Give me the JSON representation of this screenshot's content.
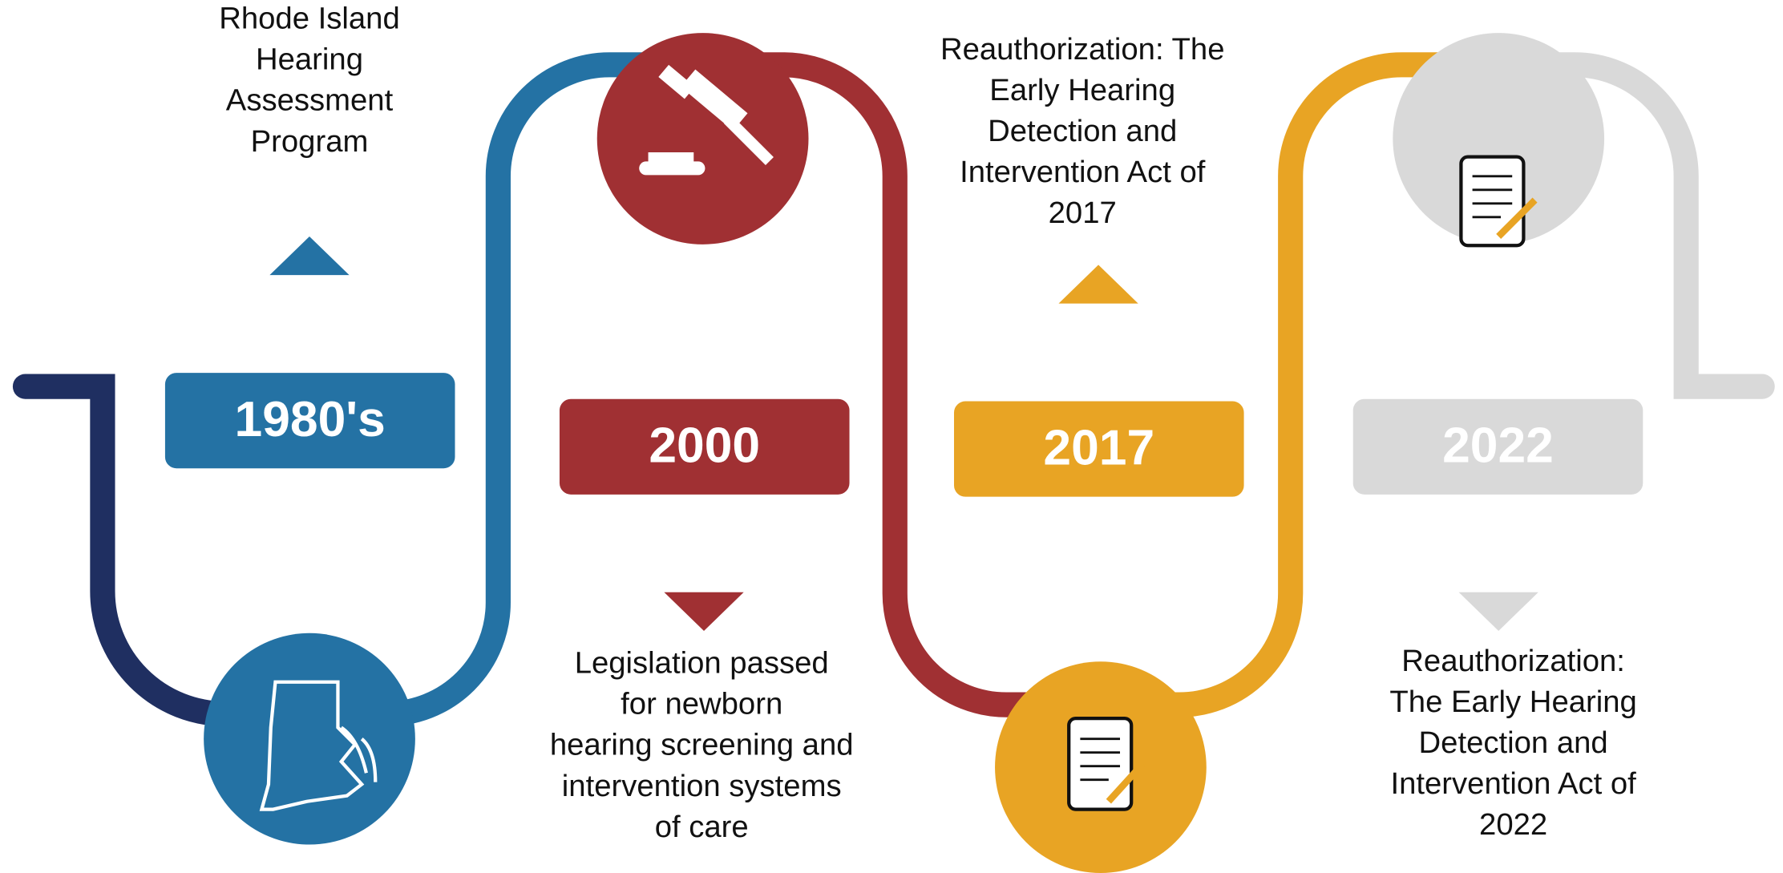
{
  "title_items": [
    {
      "year": "1980's",
      "color": "#2472a4",
      "lines": [
        "Rhode Island",
        "Hearing",
        "Assessment",
        "Program"
      ]
    },
    {
      "year": "2000",
      "color": "#a03033",
      "lines": [
        "Legislation passed",
        "for newborn",
        "hearing screening and",
        "intervention systems",
        "of care"
      ]
    },
    {
      "year": "2017",
      "color": "#e8a424",
      "lines": [
        "Reauthorization: The",
        "Early Hearing",
        "Detection and",
        "Intervention Act of",
        "2017"
      ]
    },
    {
      "year": "2022",
      "color": "#d9d9d9",
      "lines": [
        "Reauthorization:",
        "The Early Hearing",
        "Detection and",
        "Intervention Act of",
        "2022"
      ]
    }
  ]
}
